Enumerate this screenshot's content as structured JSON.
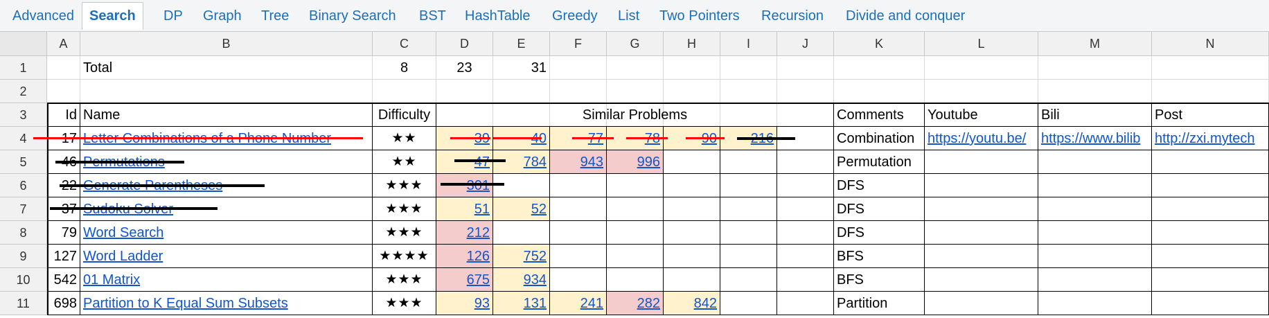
{
  "tabs": [
    {
      "label": "Advanced",
      "active": false
    },
    {
      "label": "Search",
      "active": true
    },
    {
      "label": "DP",
      "active": false
    },
    {
      "label": "Graph",
      "active": false
    },
    {
      "label": "Tree",
      "active": false
    },
    {
      "label": "Binary Search",
      "active": false
    },
    {
      "label": "BST",
      "active": false
    },
    {
      "label": "HashTable",
      "active": false
    },
    {
      "label": "Greedy",
      "active": false
    },
    {
      "label": "List",
      "active": false
    },
    {
      "label": "Two Pointers",
      "active": false
    },
    {
      "label": "Recursion",
      "active": false
    },
    {
      "label": "Divide and conquer",
      "active": false
    }
  ],
  "columns": [
    "A",
    "B",
    "C",
    "D",
    "E",
    "F",
    "G",
    "H",
    "I",
    "J",
    "K",
    "L",
    "M",
    "N"
  ],
  "rows": [
    "1",
    "2",
    "3",
    "4",
    "5",
    "6",
    "7",
    "8",
    "9",
    "10",
    "11"
  ],
  "totals": {
    "label": "Total",
    "c": "8",
    "d": "23",
    "e": "31"
  },
  "headers": {
    "id": "Id",
    "name": "Name",
    "difficulty": "Difficulty",
    "similar": "Similar Problems",
    "comments": "Comments",
    "youtube": "Youtube",
    "bili": "Bili",
    "post": "Post"
  },
  "colors": {
    "yellow": "#fff2cc",
    "pink": "#f4cccc",
    "link": "#1155cc",
    "strike_red": "#ff0000"
  },
  "problems": [
    {
      "id": "17",
      "name": "Letter Combinations of a Phone Number",
      "difficulty": "★★",
      "similar": [
        {
          "v": "39",
          "bg": "yellow"
        },
        {
          "v": "40",
          "bg": "yellow"
        },
        {
          "v": "77",
          "bg": "yellow"
        },
        {
          "v": "78",
          "bg": "yellow"
        },
        {
          "v": "90",
          "bg": "yellow"
        },
        {
          "v": "216",
          "bg": "yellow"
        }
      ],
      "comment": "Combination",
      "youtube": "https://youtu.be/",
      "bili": "https://www.bilib",
      "post": "http://zxi.mytech"
    },
    {
      "id": "46",
      "name": "Permutations",
      "difficulty": "★★",
      "similar": [
        {
          "v": "47",
          "bg": "yellow"
        },
        {
          "v": "784",
          "bg": "yellow"
        },
        {
          "v": "943",
          "bg": "pink"
        },
        {
          "v": "996",
          "bg": "pink"
        }
      ],
      "comment": "Permutation",
      "youtube": "",
      "bili": "",
      "post": ""
    },
    {
      "id": "22",
      "name": "Generate Parentheses",
      "difficulty": "★★★",
      "similar": [
        {
          "v": "301",
          "bg": "pink"
        }
      ],
      "comment": "DFS",
      "youtube": "",
      "bili": "",
      "post": ""
    },
    {
      "id": "37",
      "name": "Sudoku Solver",
      "difficulty": "★★★",
      "similar": [
        {
          "v": "51",
          "bg": "yellow"
        },
        {
          "v": "52",
          "bg": "yellow"
        }
      ],
      "comment": "DFS",
      "youtube": "",
      "bili": "",
      "post": ""
    },
    {
      "id": "79",
      "name": "Word Search",
      "difficulty": "★★★",
      "similar": [
        {
          "v": "212",
          "bg": "pink"
        }
      ],
      "comment": "DFS",
      "youtube": "",
      "bili": "",
      "post": ""
    },
    {
      "id": "127",
      "name": "Word Ladder",
      "difficulty": "★★★★",
      "similar": [
        {
          "v": "126",
          "bg": "pink"
        },
        {
          "v": "752",
          "bg": "yellow"
        }
      ],
      "comment": "BFS",
      "youtube": "",
      "bili": "",
      "post": ""
    },
    {
      "id": "542",
      "name": "01 Matrix",
      "difficulty": "★★★",
      "similar": [
        {
          "v": "675",
          "bg": "pink"
        },
        {
          "v": "934",
          "bg": "yellow"
        }
      ],
      "comment": "BFS",
      "youtube": "",
      "bili": "",
      "post": ""
    },
    {
      "id": "698",
      "name": "Partition to K Equal Sum Subsets",
      "difficulty": "★★★",
      "similar": [
        {
          "v": "93",
          "bg": "yellow"
        },
        {
          "v": "131",
          "bg": "yellow"
        },
        {
          "v": "241",
          "bg": "yellow"
        },
        {
          "v": "282",
          "bg": "pink"
        },
        {
          "v": "842",
          "bg": "yellow"
        }
      ],
      "comment": "Partition",
      "youtube": "",
      "bili": "",
      "post": ""
    }
  ]
}
